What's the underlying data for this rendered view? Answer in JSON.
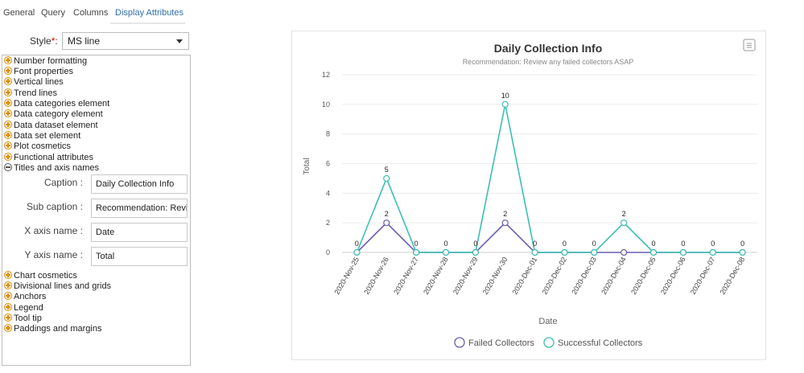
{
  "tabs": [
    "General",
    "Query",
    "Columns",
    "Display Attributes"
  ],
  "style": {
    "label": "Style",
    "required_mark": "*",
    "separator": ":",
    "value": "MS line"
  },
  "tree": {
    "items_top": [
      "Number formatting",
      "Font properties",
      "Vertical lines",
      "Trend lines",
      "Data categories element",
      "Data category element",
      "Data dataset element",
      "Data set element",
      "Plot cosmetics",
      "Functional attributes"
    ],
    "expanded": "Titles and axis names",
    "fields": [
      {
        "label": "Caption :",
        "value": "Daily Collection Info"
      },
      {
        "label": "Sub caption :",
        "value": "Recommendation: Revi"
      },
      {
        "label": "X axis name :",
        "value": "Date"
      },
      {
        "label": "Y axis name :",
        "value": "Total"
      }
    ],
    "items_bottom": [
      "Chart cosmetics",
      "Divisional lines and grids",
      "Anchors",
      "Legend",
      "Tool tip",
      "Paddings and margins"
    ]
  },
  "colors": {
    "failed": "#6a5fb0",
    "successful": "#3dbfb4",
    "accent": "#2f6fb0"
  },
  "chart_data": {
    "type": "line",
    "title": "Daily Collection Info",
    "subtitle": "Recommendation: Review any failed collectors ASAP",
    "xlabel": "Date",
    "ylabel": "Total",
    "ylim": [
      0,
      12
    ],
    "yticks": [
      0,
      2,
      4,
      6,
      8,
      10,
      12
    ],
    "categories": [
      "2020-Nov-25",
      "2020-Nov-26",
      "2020-Nov-27",
      "2020-Nov-28",
      "2020-Nov-29",
      "2020-Nov-30",
      "2020-Dec-01",
      "2020-Dec-02",
      "2020-Dec-03",
      "2020-Dec-04",
      "2020-Dec-05",
      "2020-Dec-06",
      "2020-Dec-07",
      "2020-Dec-08"
    ],
    "series": [
      {
        "name": "Failed Collectors",
        "values": [
          0,
          2,
          0,
          0,
          0,
          2,
          0,
          0,
          0,
          0,
          0,
          0,
          0,
          0
        ]
      },
      {
        "name": "Successful Collectors",
        "values": [
          0,
          5,
          0,
          0,
          0,
          10,
          0,
          0,
          0,
          2,
          0,
          0,
          0,
          0
        ]
      }
    ],
    "legend": "bottom-center"
  }
}
